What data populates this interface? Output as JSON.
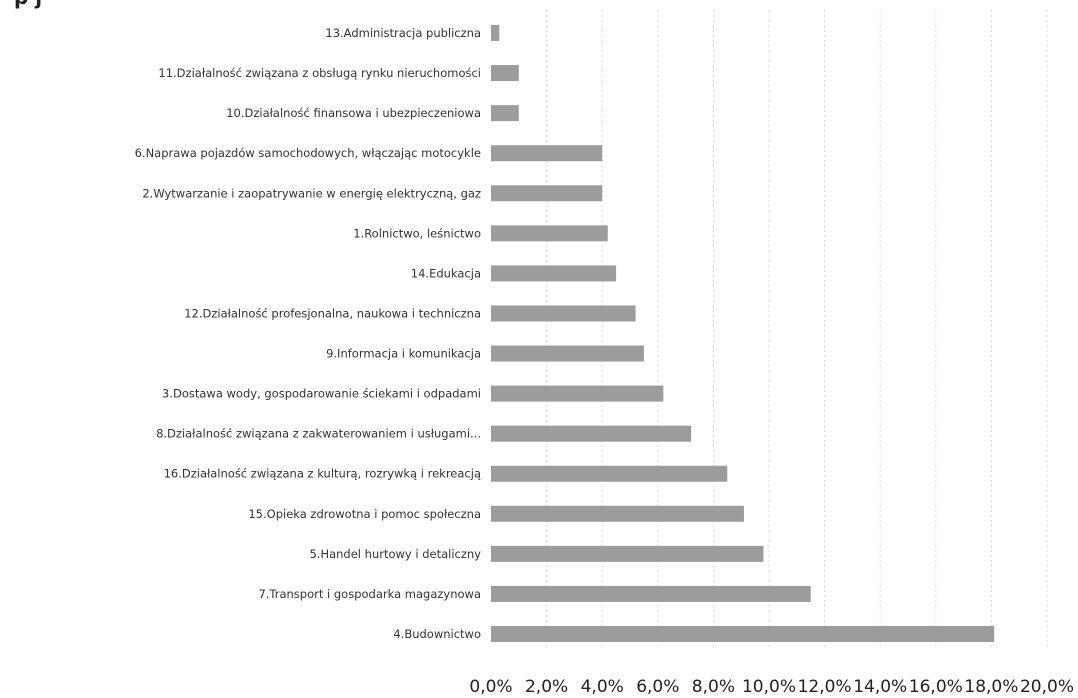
{
  "chart_data": {
    "type": "bar",
    "orientation": "horizontal",
    "title_fragment": "p                  j                      ",
    "categories": [
      "13.Administracja publiczna",
      "11.Działalność związana z obsługą rynku nieruchomości",
      "10.Działalność finansowa i ubezpieczeniowa",
      "6.Naprawa pojazdów samochodowych, włączając motocykle",
      "2.Wytwarzanie i zaopatrywanie w energię elektryczną, gaz",
      "1.Rolnictwo, leśnictwo",
      "14.Edukacja",
      "12.Działalność profesjonalna, naukowa i techniczna",
      "9.Informacja i komunikacja",
      "3.Dostawa wody, gospodarowanie ściekami i odpadami",
      "8.Działalność związana z zakwaterowaniem i usługami...",
      "16.Działalność związana z kulturą, rozrywką i rekreacją",
      "15.Opieka zdrowotna i pomoc społeczna",
      "5.Handel hurtowy i detaliczny",
      "7.Transport i gospodarka magazynowa",
      "4.Budownictwo"
    ],
    "values": [
      0.3,
      1.0,
      1.0,
      4.0,
      4.0,
      4.2,
      4.5,
      5.2,
      5.5,
      6.2,
      7.2,
      8.5,
      9.1,
      9.8,
      11.5,
      18.1
    ],
    "x_unit": "%",
    "xlim": [
      0,
      20
    ],
    "x_tick_values": [
      0,
      2,
      4,
      6,
      8,
      10,
      12,
      14,
      16,
      18,
      20
    ],
    "x_tick_labels": [
      "0,0%",
      "2,0%",
      "4,0%",
      "6,0%",
      "8,0%",
      "10,0%",
      "12,0%",
      "14,0%",
      "16,0%",
      "18,0%",
      "20,0%"
    ],
    "grid": true,
    "legend": "none",
    "bar_color": "#9c9c9c"
  }
}
